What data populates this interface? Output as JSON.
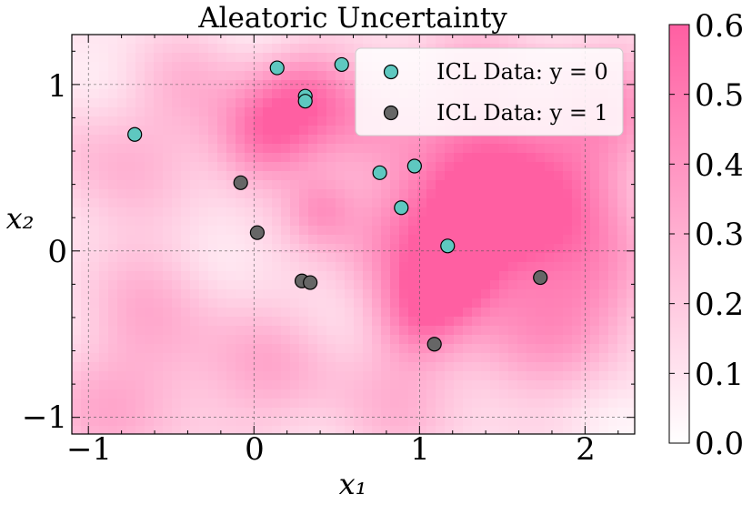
{
  "chart_data": {
    "type": "scatter",
    "title": "Aleatoric Uncertainty",
    "xlabel": "x₁",
    "ylabel": "x₂",
    "xlim": [
      -1.1,
      2.3
    ],
    "ylim": [
      -1.1,
      1.3
    ],
    "x_ticks": [
      -1,
      0,
      1,
      2
    ],
    "y_ticks": [
      -1,
      0,
      1
    ],
    "x_tick_labels": [
      "−1",
      "0",
      "1",
      "2"
    ],
    "y_tick_labels": [
      "−1",
      "0",
      "1"
    ],
    "grid": true,
    "legend_position": "top-right",
    "background": {
      "type": "heatmap",
      "quantity": "aleatoric uncertainty",
      "colormap": [
        "#ffffff",
        "#ff5fa2"
      ],
      "range": [
        0.0,
        0.6
      ]
    },
    "colorbar": {
      "ticks": [
        0.0,
        0.1,
        0.2,
        0.3,
        0.4,
        0.5,
        0.6
      ],
      "tick_labels": [
        "0.0",
        "0.1",
        "0.2",
        "0.3",
        "0.4",
        "0.5",
        "0.6"
      ]
    },
    "series": [
      {
        "name": "ICL Data: y = 0",
        "color": "#5ec8c0",
        "points": [
          [
            0.14,
            1.1
          ],
          [
            0.53,
            1.12
          ],
          [
            0.31,
            0.93
          ],
          [
            0.31,
            0.9
          ],
          [
            -0.72,
            0.7
          ],
          [
            0.76,
            0.47
          ],
          [
            0.97,
            0.51
          ],
          [
            0.89,
            0.26
          ],
          [
            1.17,
            0.03
          ]
        ]
      },
      {
        "name": "ICL Data: y = 1",
        "color": "#666666",
        "points": [
          [
            -0.08,
            0.41
          ],
          [
            0.02,
            0.11
          ],
          [
            0.29,
            -0.18
          ],
          [
            0.34,
            -0.19
          ],
          [
            1.73,
            -0.16
          ],
          [
            1.09,
            -0.56
          ]
        ]
      }
    ]
  }
}
